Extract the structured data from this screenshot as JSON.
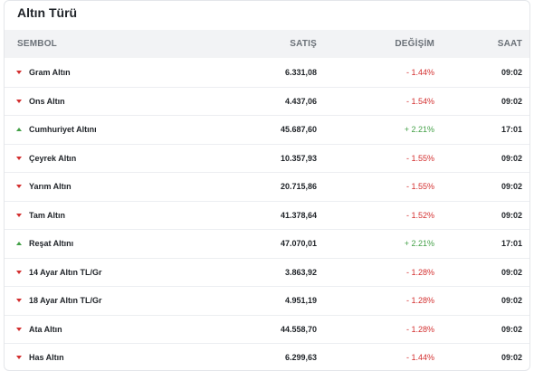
{
  "title": "Altın Türü",
  "headers": {
    "symbol": "SEMBOL",
    "price": "SATIŞ",
    "change": "DEĞİŞİM",
    "time": "SAAT"
  },
  "colors": {
    "negative": "#d32f2f",
    "positive": "#43a047"
  },
  "rows": [
    {
      "name": "Gram Altın",
      "price": "6.331,08",
      "change": "- 1.44%",
      "time": "09:02",
      "direction": "down"
    },
    {
      "name": "Ons Altın",
      "price": "4.437,06",
      "change": "- 1.54%",
      "time": "09:02",
      "direction": "down"
    },
    {
      "name": "Cumhuriyet Altını",
      "price": "45.687,60",
      "change": "+ 2.21%",
      "time": "17:01",
      "direction": "up"
    },
    {
      "name": "Çeyrek Altın",
      "price": "10.357,93",
      "change": "- 1.55%",
      "time": "09:02",
      "direction": "down"
    },
    {
      "name": "Yarım Altın",
      "price": "20.715,86",
      "change": "- 1.55%",
      "time": "09:02",
      "direction": "down"
    },
    {
      "name": "Tam Altın",
      "price": "41.378,64",
      "change": "- 1.52%",
      "time": "09:02",
      "direction": "down"
    },
    {
      "name": "Reşat Altını",
      "price": "47.070,01",
      "change": "+ 2.21%",
      "time": "17:01",
      "direction": "up"
    },
    {
      "name": "14 Ayar Altın TL/Gr",
      "price": "3.863,92",
      "change": "- 1.28%",
      "time": "09:02",
      "direction": "down"
    },
    {
      "name": "18 Ayar Altın TL/Gr",
      "price": "4.951,19",
      "change": "- 1.28%",
      "time": "09:02",
      "direction": "down"
    },
    {
      "name": "Ata Altın",
      "price": "44.558,70",
      "change": "- 1.28%",
      "time": "09:02",
      "direction": "down"
    },
    {
      "name": "Has Altın",
      "price": "6.299,63",
      "change": "- 1.44%",
      "time": "09:02",
      "direction": "down"
    }
  ]
}
